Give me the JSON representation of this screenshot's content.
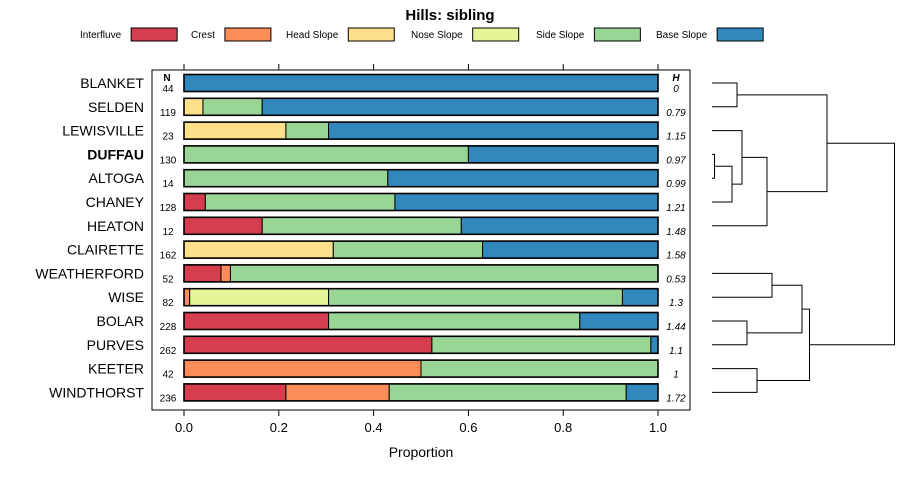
{
  "chart_data": {
    "type": "stacked-bar",
    "title": "Hills: sibling",
    "xlabel": "Proportion",
    "ylabel": "",
    "xlim": [
      0,
      1
    ],
    "x_ticks": [
      0.0,
      0.2,
      0.4,
      0.6,
      0.8,
      1.0
    ],
    "x_tick_labels": [
      "0.0",
      "0.2",
      "0.4",
      "0.6",
      "0.8",
      "1.0"
    ],
    "n_header": "N",
    "h_header": "H",
    "highlight": "DUFFAU",
    "legend": [
      {
        "name": "Interfluve",
        "color": "#d53e4f"
      },
      {
        "name": "Crest",
        "color": "#fc8d59"
      },
      {
        "name": "Head Slope",
        "color": "#fee08b"
      },
      {
        "name": "Nose Slope",
        "color": "#e6f598"
      },
      {
        "name": "Side Slope",
        "color": "#99d594"
      },
      {
        "name": "Base Slope",
        "color": "#3288bd"
      }
    ],
    "rows": [
      {
        "label": "BLANKET",
        "n": "44",
        "h": "0",
        "values": [
          0,
          0,
          0,
          0,
          0,
          1.0
        ]
      },
      {
        "label": "SELDEN",
        "n": "119",
        "h": "0.79",
        "values": [
          0,
          0,
          0.04,
          0,
          0.125,
          0.835
        ]
      },
      {
        "label": "LEWISVILLE",
        "n": "23",
        "h": "1.15",
        "values": [
          0,
          0,
          0.215,
          0,
          0.09,
          0.695
        ]
      },
      {
        "label": "DUFFAU",
        "n": "130",
        "h": "0.97",
        "values": [
          0,
          0,
          0,
          0,
          0.6,
          0.4
        ]
      },
      {
        "label": "ALTOGA",
        "n": "14",
        "h": "0.99",
        "values": [
          0,
          0,
          0,
          0,
          0.43,
          0.57
        ]
      },
      {
        "label": "CHANEY",
        "n": "128",
        "h": "1.21",
        "values": [
          0.045,
          0,
          0,
          0,
          0.4,
          0.555
        ]
      },
      {
        "label": "HEATON",
        "n": "12",
        "h": "1.48",
        "values": [
          0.165,
          0,
          0,
          0,
          0.42,
          0.415
        ]
      },
      {
        "label": "CLAIRETTE",
        "n": "162",
        "h": "1.58",
        "values": [
          0,
          0,
          0.315,
          0,
          0.315,
          0.37
        ]
      },
      {
        "label": "WEATHERFORD",
        "n": "52",
        "h": "0.53",
        "values": [
          0.078,
          0.02,
          0,
          0,
          0.902,
          0
        ]
      },
      {
        "label": "WISE",
        "n": "82",
        "h": "1.3",
        "values": [
          0,
          0.012,
          0,
          0.293,
          0.62,
          0.075
        ]
      },
      {
        "label": "BOLAR",
        "n": "228",
        "h": "1.44",
        "values": [
          0.305,
          0,
          0,
          0,
          0.53,
          0.165
        ]
      },
      {
        "label": "PURVES",
        "n": "262",
        "h": "1.1",
        "values": [
          0.523,
          0,
          0,
          0,
          0.462,
          0.015
        ]
      },
      {
        "label": "KEETER",
        "n": "42",
        "h": "1",
        "values": [
          0,
          0.5,
          0,
          0,
          0.5,
          0
        ]
      },
      {
        "label": "WINDTHORST",
        "n": "236",
        "h": "1.72",
        "values": [
          0.215,
          0.218,
          0,
          0,
          0.5,
          0.067
        ]
      }
    ],
    "dendrogram": {
      "nodes": [
        {
          "left": 0,
          "right": 1,
          "height": 0.05
        },
        {
          "left": 3,
          "right": 4,
          "height": 0.005
        },
        {
          "left": 15,
          "right": 5,
          "height": 0.04
        },
        {
          "left": 16,
          "right": 2,
          "height": 0.06
        },
        {
          "left": 17,
          "right": 6,
          "height": 0.11
        },
        {
          "left": 14,
          "right": 18,
          "height": 0.23
        },
        {
          "left": 8,
          "right": 9,
          "height": 0.12
        },
        {
          "left": 10,
          "right": 11,
          "height": 0.07
        },
        {
          "left": 12,
          "right": 13,
          "height": 0.09
        },
        {
          "left": 20,
          "right": 21,
          "height": 0.18
        },
        {
          "left": 23,
          "right": 22,
          "height": 0.195
        },
        {
          "left": 19,
          "right": 24,
          "height": 0.365
        }
      ]
    }
  }
}
